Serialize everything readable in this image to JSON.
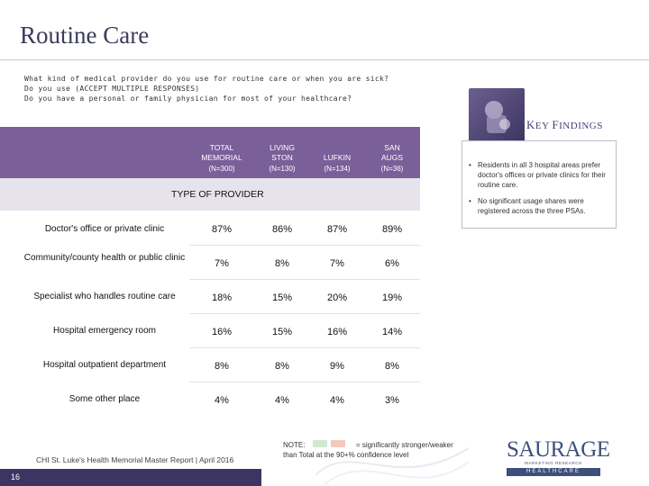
{
  "title": "Routine Care",
  "questions": [
    "What kind of medical provider do you use for routine care or when you are sick?",
    "Do you use (ACCEPT MULTIPLE RESPONSES)",
    "Do you have a personal or family physician for most of your healthcare?"
  ],
  "key_findings": {
    "title_first_cap": "K",
    "title_first_rest": "EY ",
    "title_second_cap": "F",
    "title_second_rest": "INDINGS",
    "bullets": [
      "Residents in all 3 hospital areas prefer doctor's offices or private clinics for their routine care.",
      "No significant usage shares were registered across the three PSAs."
    ]
  },
  "table": {
    "section_label": "TYPE OF PROVIDER",
    "columns": [
      {
        "name_line1": "TOTAL",
        "name_line2": "MEMORIAL",
        "n": "(N=300)"
      },
      {
        "name_line1": "LIVING",
        "name_line2": "STON",
        "n": "(N=130)"
      },
      {
        "name_line1": "",
        "name_line2": "LUFKIN",
        "n": "(N=134)"
      },
      {
        "name_line1": "SAN",
        "name_line2": "AUGS",
        "n": "(N=36)"
      }
    ],
    "rows": [
      {
        "label": "Doctor's office or private clinic",
        "values": [
          "87%",
          "86%",
          "87%",
          "89%"
        ]
      },
      {
        "label": "Community/county health or public clinic",
        "values": [
          "7%",
          "8%",
          "7%",
          "6%"
        ]
      },
      {
        "label": "Specialist who handles routine care",
        "values": [
          "18%",
          "15%",
          "20%",
          "19%"
        ]
      },
      {
        "label": "Hospital emergency room",
        "values": [
          "16%",
          "15%",
          "16%",
          "14%"
        ]
      },
      {
        "label": "Hospital outpatient department",
        "values": [
          "8%",
          "8%",
          "9%",
          "8%"
        ]
      },
      {
        "label": "Some other place",
        "values": [
          "4%",
          "4%",
          "4%",
          "3%"
        ]
      }
    ]
  },
  "note": {
    "prefix": "NOTE:",
    "suffix": "= significantly stronger/weaker",
    "line2": "than Total at the 90+% confidence level",
    "stronger_color": "#cfe8cf",
    "weaker_color": "#f3c9bd"
  },
  "footer": "CHI St. Luke's Health Memorial Master Report | April 2016",
  "page_number": "16",
  "logo": {
    "word": "SAURAGE",
    "subtitle": "MARKETING RESEARCH",
    "bar_text": "HEALTHCARE"
  },
  "colors": {
    "header_purple": "#7b5f99",
    "type_band": "#e6e3ec",
    "brand_navy": "#3d4f7a"
  }
}
